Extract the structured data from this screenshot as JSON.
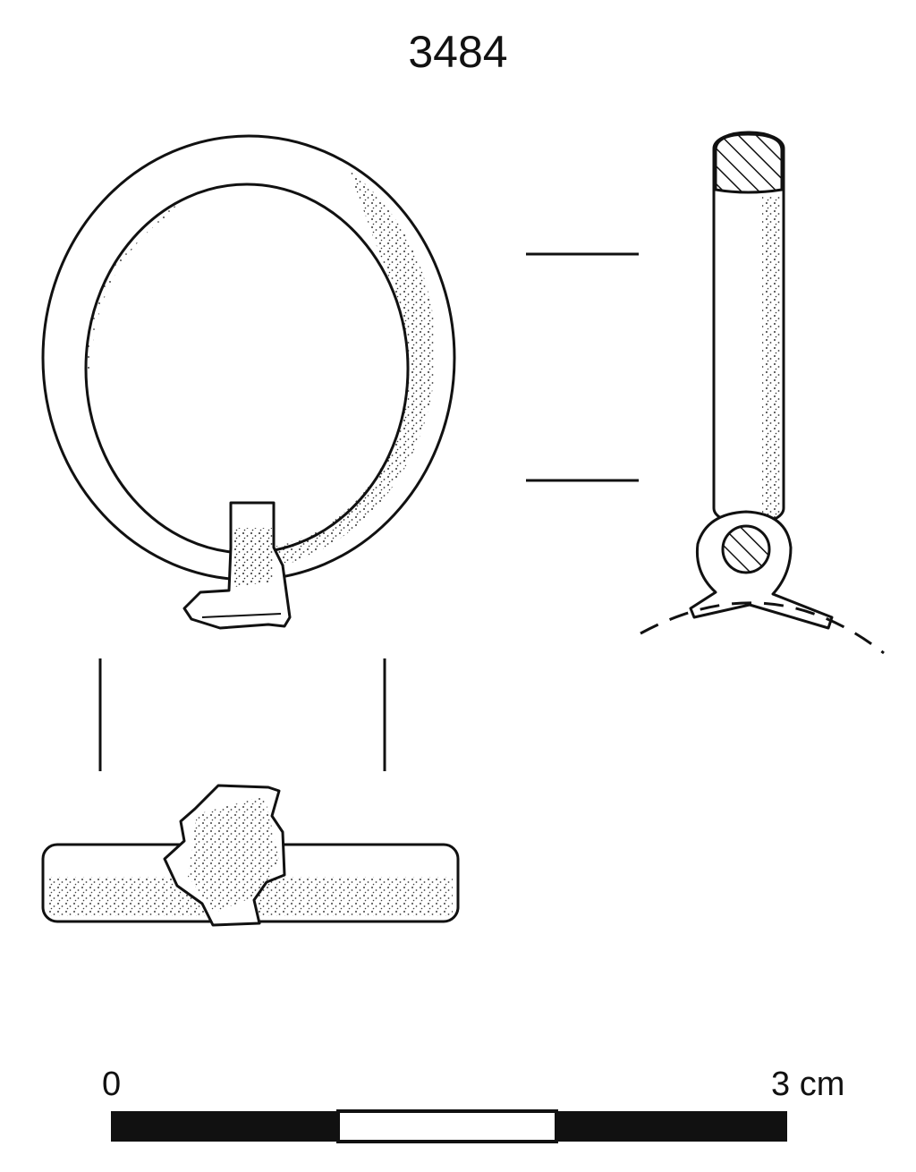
{
  "figure": {
    "catalogue_number": "3484"
  },
  "scale_bar": {
    "start_label": "0",
    "end_label": "3 cm",
    "segments": 3
  },
  "colors": {
    "ink": "#111111",
    "paper": "#ffffff"
  }
}
